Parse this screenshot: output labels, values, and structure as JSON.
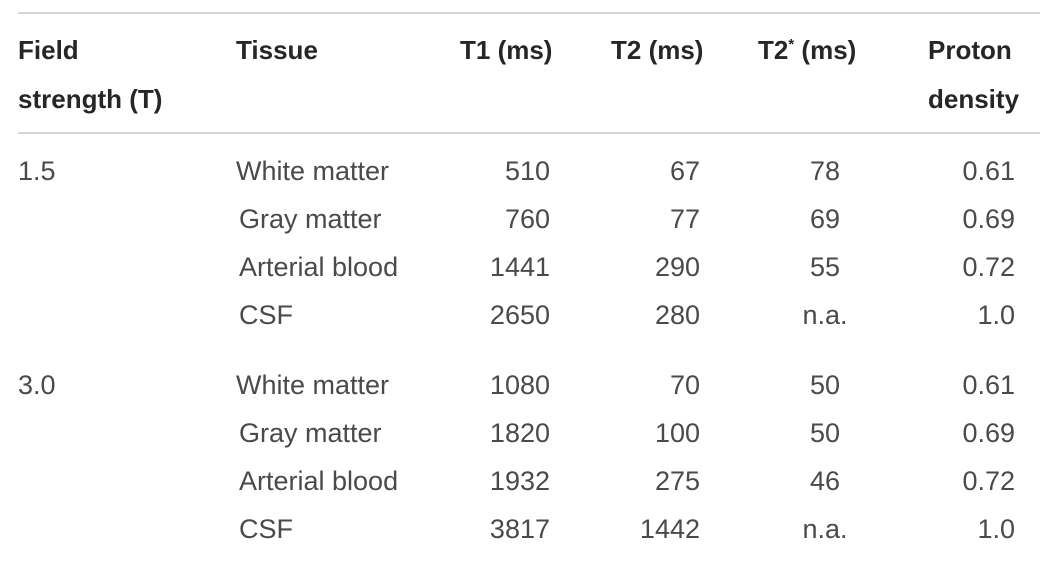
{
  "headers": {
    "field_line1": "Field",
    "field_line2": "strength (T)",
    "tissue": "Tissue",
    "t1": "T1 (ms)",
    "t2": "T2 (ms)",
    "t2star_pre": "T2",
    "t2star_sup": "*",
    "t2star_post": " (ms)",
    "pd_line1": "Proton",
    "pd_line2": "density"
  },
  "groups": [
    {
      "field": "1.5",
      "rows": [
        {
          "tissue": "White matter",
          "t1": "510",
          "t2": "67",
          "t2star": "78",
          "pd": "0.61"
        },
        {
          "tissue": "Gray matter",
          "t1": "760",
          "t2": "77",
          "t2star": "69",
          "pd": "0.69"
        },
        {
          "tissue": "Arterial blood",
          "t1": "1441",
          "t2": "290",
          "t2star": "55",
          "pd": "0.72"
        },
        {
          "tissue": "CSF",
          "t1": "2650",
          "t2": "280",
          "t2star": "n.a.",
          "pd": "1.0"
        }
      ]
    },
    {
      "field": "3.0",
      "rows": [
        {
          "tissue": "White matter",
          "t1": "1080",
          "t2": "70",
          "t2star": "50",
          "pd": "0.61"
        },
        {
          "tissue": "Gray matter",
          "t1": "1820",
          "t2": "100",
          "t2star": "50",
          "pd": "0.69"
        },
        {
          "tissue": "Arterial blood",
          "t1": "1932",
          "t2": "275",
          "t2star": "46",
          "pd": "0.72"
        },
        {
          "tissue": "CSF",
          "t1": "3817",
          "t2": "1442",
          "t2star": "n.a.",
          "pd": "1.0"
        }
      ]
    }
  ]
}
